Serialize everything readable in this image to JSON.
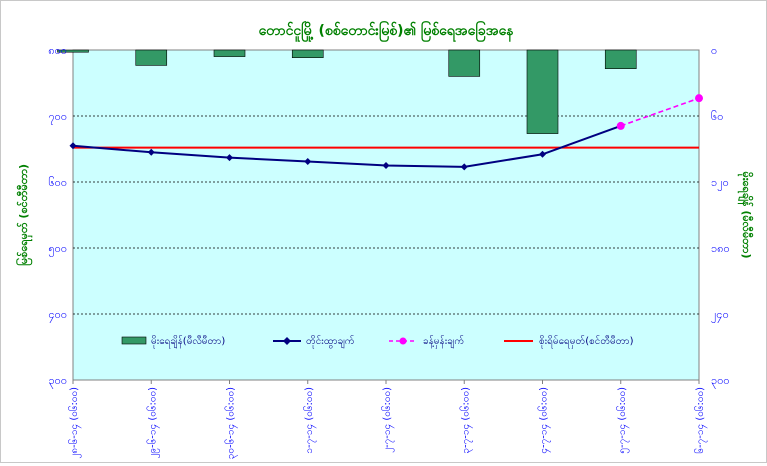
{
  "chart_data": {
    "type": "bar+line",
    "title": "တောင်ငူမြို့ (စစ်တောင်းမြစ်)၏ မြစ်ရေအခြေအနေ",
    "y_left_label": "မြစ်ရေမှတ် (စင်တီမီတာ)",
    "y_right_label": "မိုးရေချိန် (မီလီမီတာ)",
    "y_left_ticks": [
      "၈၀၀",
      "၇၀၀",
      "၆၀၀",
      "၅၀၀",
      "၄၀၀",
      "၃၀၀"
    ],
    "y_left_range": [
      300,
      800
    ],
    "y_right_ticks": [
      "၀",
      "၆၀",
      "၁၂၀",
      "၁၈၀",
      "၂၄၀",
      "၃၀၀"
    ],
    "y_right_range": [
      0,
      300
    ],
    "categories": [
      "၂၈-၆-၁၄ (၀၆:၀၀)",
      "၂၉-၆-၁၄ (၀၆:၀၀)",
      "၃၀-၆-၁၄ (၀၆:၀၀)",
      "၁-၇-၁၄ (၀၆:၀၀)",
      "၂-၇-၁၄ (၀၆:၀၀)",
      "၃-၇-၁၄ (၀၆:၀၀)",
      "၄-၇-၁၄ (၀၆:၀၀)",
      "၅-၇-၁၄ (၀၆:၀၀)",
      "၆-၇-၁၄ (၀၆:၀၀)"
    ],
    "rainfall": [
      2,
      14,
      6,
      7,
      0,
      24,
      76,
      17,
      null
    ],
    "observed_level": [
      655,
      645,
      637,
      631,
      625,
      623,
      642,
      685,
      null
    ],
    "forecast_level": [
      null,
      null,
      null,
      null,
      null,
      null,
      null,
      685,
      727
    ],
    "danger_level": 652,
    "legend": {
      "rainfall": "မိုးရေချိန်(မီလီမီတာ)",
      "observed": "တိုင်းထွာချက်",
      "forecast": "ခန့်မှန်းချက်",
      "danger": "စိုးရိမ်ရေမှတ်(စင်တီမီတာ)"
    },
    "colors": {
      "plot_bg": "#ccffff",
      "bar": "#339966",
      "observed": "#000080",
      "forecast": "#ff00ff",
      "danger": "#ff0000",
      "title": "#008000",
      "ticks": "#0000ff",
      "axis_label": "#008000"
    }
  }
}
